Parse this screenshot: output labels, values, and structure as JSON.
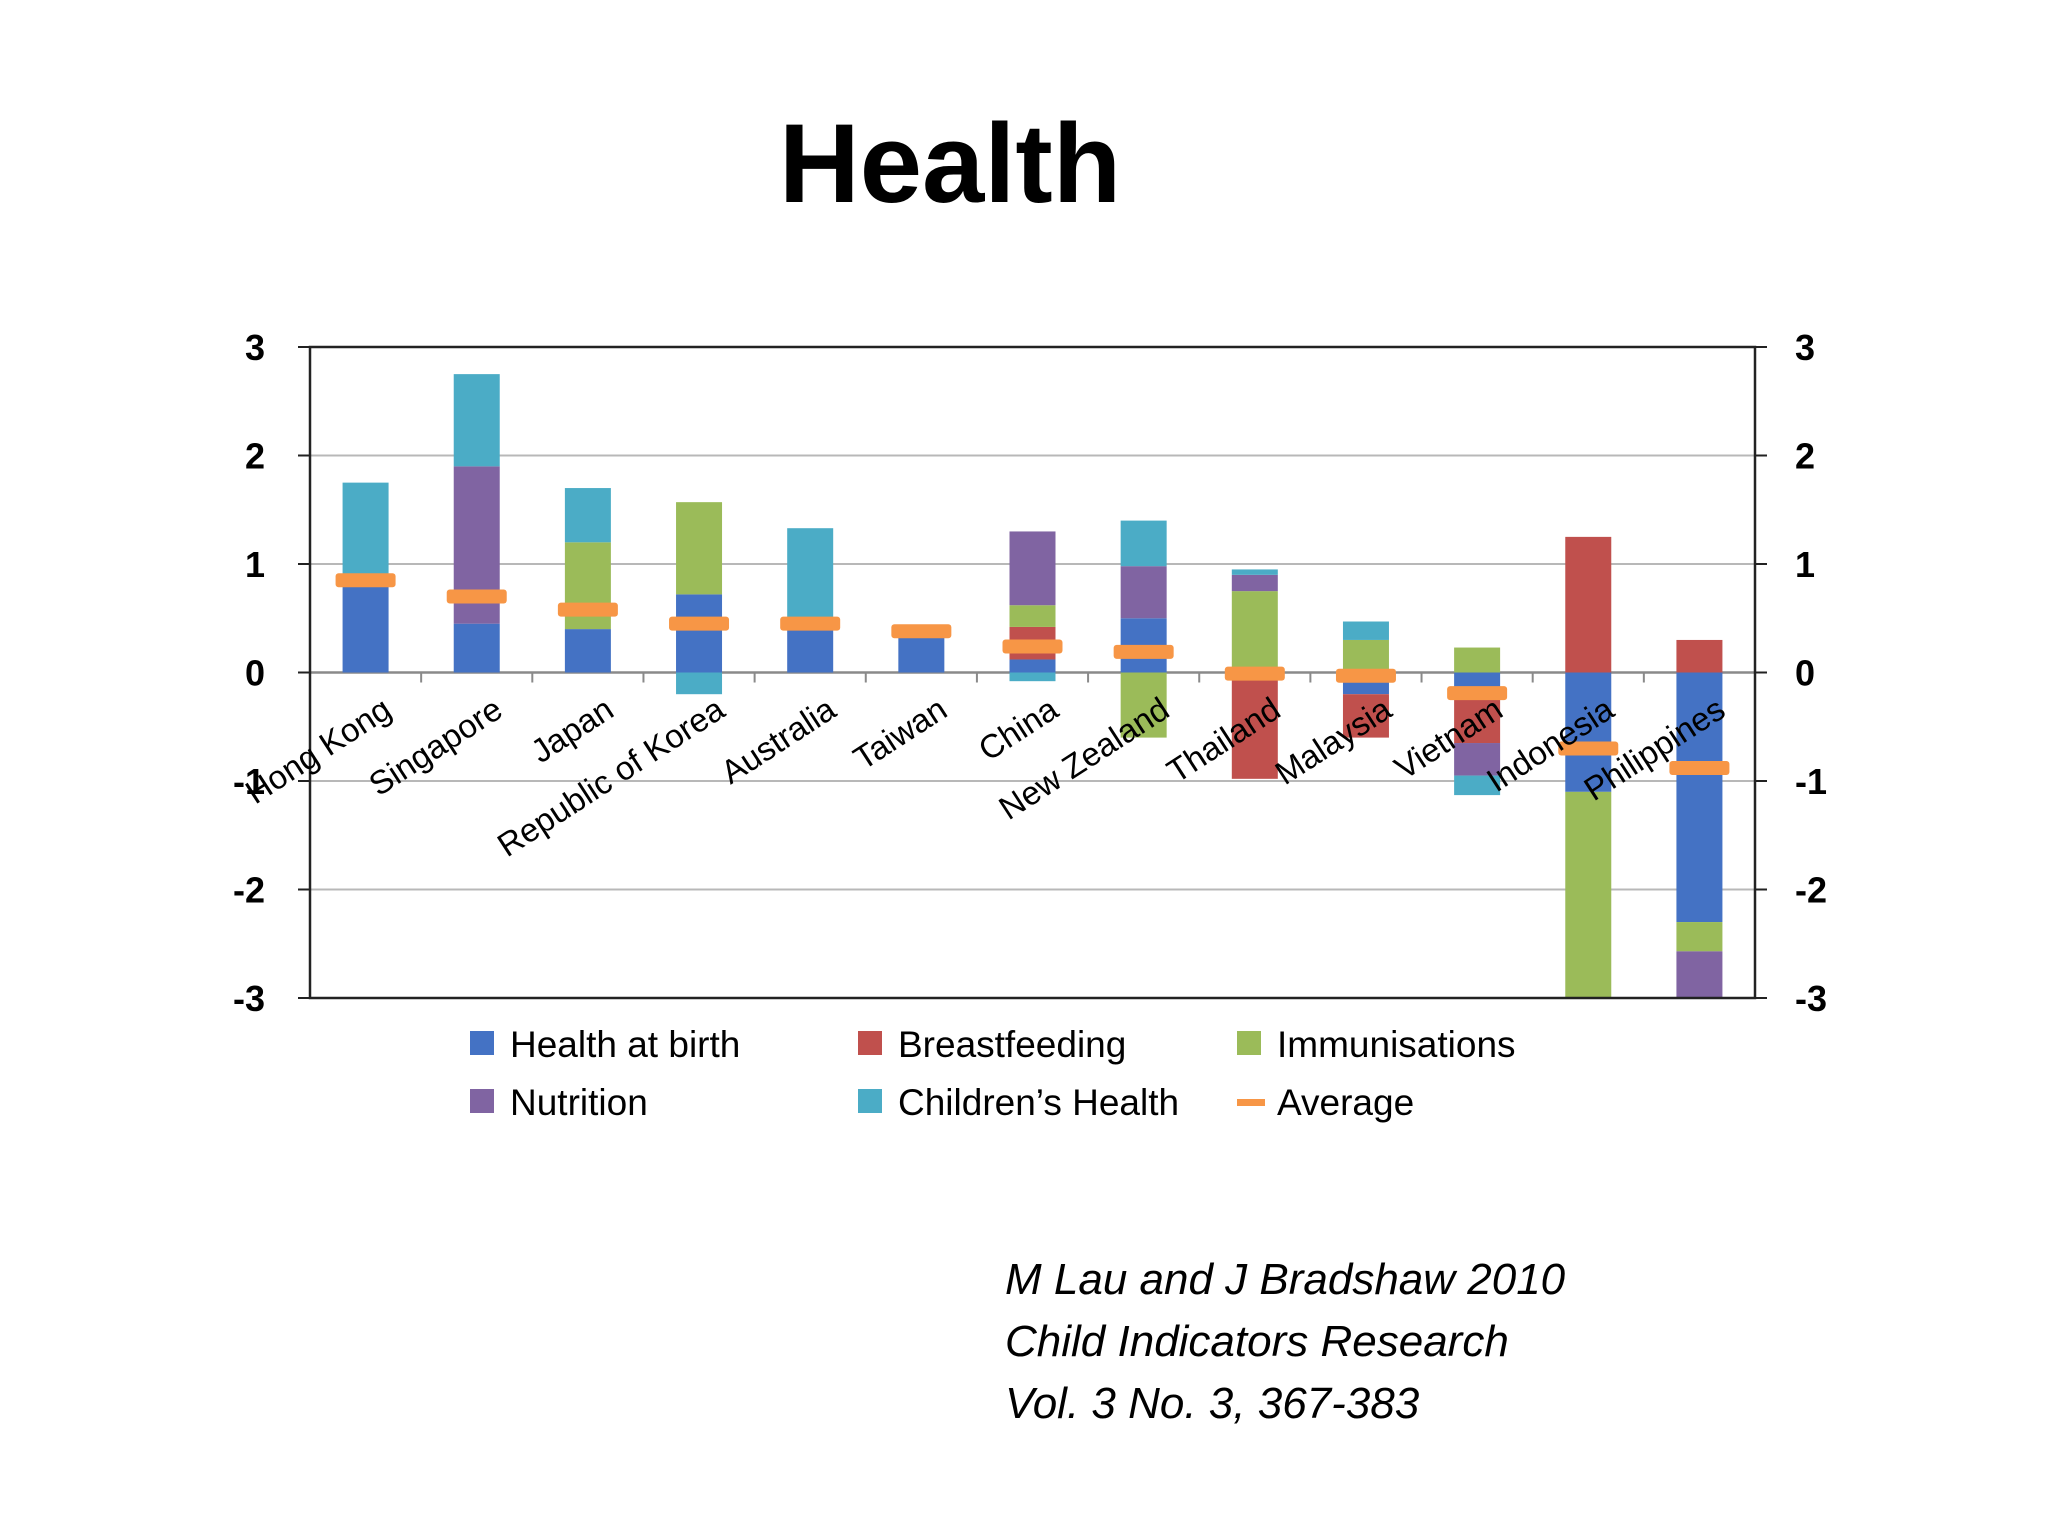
{
  "slide": {
    "title": "Health",
    "citation": [
      "M Lau and J Bradshaw 2010",
      "Child Indicators Research",
      "Vol. 3 No. 3, 367-383"
    ]
  },
  "chart_data": {
    "type": "bar",
    "stacked": true,
    "categories": [
      "Hong Kong",
      "Singapore",
      "Japan",
      "Republic of Korea",
      "Australia",
      "Taiwan",
      "China",
      "New Zealand",
      "Thailand",
      "Malaysia",
      "Vietnam",
      "Indonesia",
      "Philippines"
    ],
    "series": [
      {
        "name": "Health at birth",
        "color": "#4472C4",
        "values": [
          0.85,
          0.45,
          0.4,
          0.72,
          0.45,
          0.35,
          0.12,
          0.5,
          0.0,
          -0.2,
          -0.15,
          -1.1,
          -2.3
        ]
      },
      {
        "name": "Breastfeeding",
        "color": "#C0504D",
        "values": [
          0.0,
          0.0,
          0.0,
          0.0,
          0.0,
          0.0,
          0.3,
          0.0,
          -0.98,
          -0.4,
          -0.5,
          1.25,
          0.3
        ]
      },
      {
        "name": "Immunisations",
        "color": "#9BBB59",
        "values": [
          0.0,
          0.0,
          0.8,
          0.85,
          0.0,
          0.0,
          0.2,
          -0.6,
          0.75,
          0.3,
          0.23,
          -1.9,
          -0.27
        ]
      },
      {
        "name": "Nutrition",
        "color": "#8064A2",
        "values": [
          0.0,
          1.45,
          0.0,
          0.0,
          0.0,
          0.0,
          0.68,
          0.48,
          0.15,
          0.0,
          -0.3,
          0.0,
          -0.43
        ]
      },
      {
        "name": "Children's Health",
        "color": "#4BACC6",
        "values": [
          0.9,
          0.85,
          0.5,
          -0.2,
          0.88,
          0.05,
          -0.08,
          0.42,
          0.05,
          0.17,
          -0.18,
          0.0,
          0.0
        ]
      }
    ],
    "average": {
      "name": "Average",
      "color": "#F79646",
      "values": [
        0.85,
        0.7,
        0.58,
        0.45,
        0.45,
        0.38,
        0.24,
        0.19,
        -0.01,
        -0.03,
        -0.19,
        -0.7,
        -0.88
      ]
    },
    "legend_labels": [
      "Health at birth",
      "Breastfeeding",
      "Immunisations",
      "Nutrition",
      "Children’s Health",
      "Average"
    ],
    "ylim": [
      -3,
      3
    ],
    "yticks": [
      "-3",
      "-2",
      "-1",
      "0",
      "1",
      "2",
      "3"
    ],
    "ytick_values": [
      -3,
      -2,
      -1,
      0,
      1,
      2,
      3
    ],
    "grid": true,
    "legend_position": "bottom",
    "title": "",
    "xlabel": "",
    "ylabel": ""
  }
}
